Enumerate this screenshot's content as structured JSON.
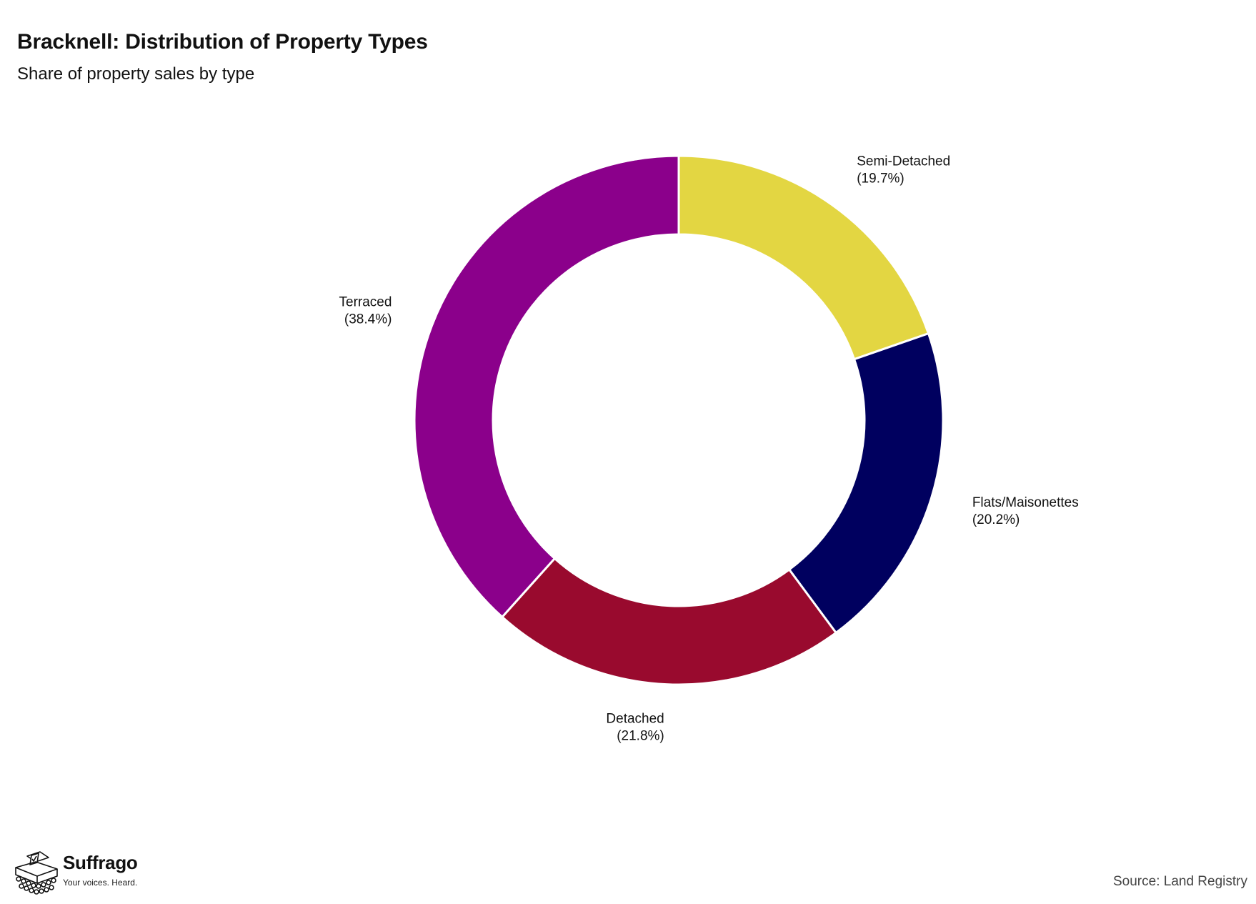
{
  "chart_data": {
    "type": "pie",
    "donut": true,
    "title": "Bracknell: Distribution of Property Types",
    "subtitle": "Share of property sales by type",
    "slices": [
      {
        "label": "Semi-Detached",
        "value": 19.7,
        "value_label": "(19.7%)",
        "color": "#e3d642"
      },
      {
        "label": "Flats/Maisonettes",
        "value": 20.2,
        "value_label": "(20.2%)",
        "color": "#00005f"
      },
      {
        "label": "Detached",
        "value": 21.8,
        "value_label": "(21.8%)",
        "color": "#990a2e"
      },
      {
        "label": "Terraced",
        "value": 38.4,
        "value_label": "(38.4%)",
        "color": "#8b008b"
      }
    ],
    "start": "12 o'clock",
    "direction": "clockwise",
    "source": "Source: Land Registry"
  },
  "branding": {
    "name": "Suffrago",
    "tagline": "Your voices. Heard.",
    "icon": "ballot-box-crowd-icon"
  }
}
